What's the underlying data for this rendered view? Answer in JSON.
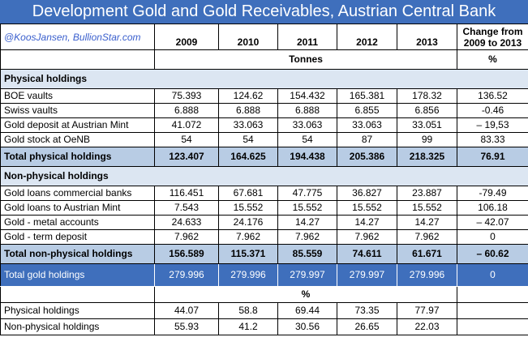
{
  "title": "Development Gold and Gold Receivables, Austrian Central Bank",
  "credit": "@KoosJansen, BullionStar.com",
  "years": [
    "2009",
    "2010",
    "2011",
    "2012",
    "2013"
  ],
  "change_header_1": "Change from",
  "change_header_2": "2009 to 2013",
  "unit_tonnes": "Tonnes",
  "unit_percent": "%",
  "section_physical": "Physical holdings",
  "physical_rows": [
    {
      "label": "BOE vaults",
      "values": [
        "75.393",
        "124.62",
        "154.432",
        "165.381",
        "178.32"
      ],
      "change": "136.52"
    },
    {
      "label": "Swiss vaults",
      "values": [
        "6.888",
        "6.888",
        "6.888",
        "6.855",
        "6.856"
      ],
      "change": "-0.46"
    },
    {
      "label": "Gold deposit at Austrian Mint",
      "values": [
        "41.072",
        "33.063",
        "33.063",
        "33.063",
        "33.051"
      ],
      "change": "– 19,53"
    },
    {
      "label": "Gold stock at OeNB",
      "values": [
        "54",
        "54",
        "54",
        "87",
        "99"
      ],
      "change": "83.33"
    }
  ],
  "total_physical": {
    "label": "Total physical holdings",
    "values": [
      "123.407",
      "164.625",
      "194.438",
      "205.386",
      "218.325"
    ],
    "change": "76.91"
  },
  "section_nonphysical": "Non-physical holdings",
  "nonphysical_rows": [
    {
      "label": "Gold loans commercial banks",
      "values": [
        "116.451",
        "67.681",
        "47.775",
        "36.827",
        "23.887"
      ],
      "change": "-79.49"
    },
    {
      "label": "Gold loans to Austrian Mint",
      "values": [
        "7.543",
        "15.552",
        "15.552",
        "15.552",
        "15.552"
      ],
      "change": "106.18"
    },
    {
      "label": "Gold - metal accounts",
      "values": [
        "24.633",
        "24.176",
        "14.27",
        "14.27",
        "14.27"
      ],
      "change": "– 42.07"
    },
    {
      "label": "Gold - term deposit",
      "values": [
        "7.962",
        "7.962",
        "7.962",
        "7.962",
        "7.962"
      ],
      "change": "0"
    }
  ],
  "total_nonphysical": {
    "label": "Total non-physical holdings",
    "values": [
      "156.589",
      "115.371",
      "85.559",
      "74.611",
      "61.671"
    ],
    "change": "– 60.62"
  },
  "total_gold": {
    "label": "Total gold holdings",
    "values": [
      "279.996",
      "279.996",
      "279.997",
      "279.997",
      "279.996"
    ],
    "change": "0"
  },
  "percent_header": "%",
  "percent_rows": [
    {
      "label": "Physical holdings",
      "values": [
        "44.07",
        "58.8",
        "69.44",
        "73.35",
        "77.97"
      ]
    },
    {
      "label": "Non-physical holdings",
      "values": [
        "55.93",
        "41.2",
        "30.56",
        "26.65",
        "22.03"
      ]
    }
  ]
}
